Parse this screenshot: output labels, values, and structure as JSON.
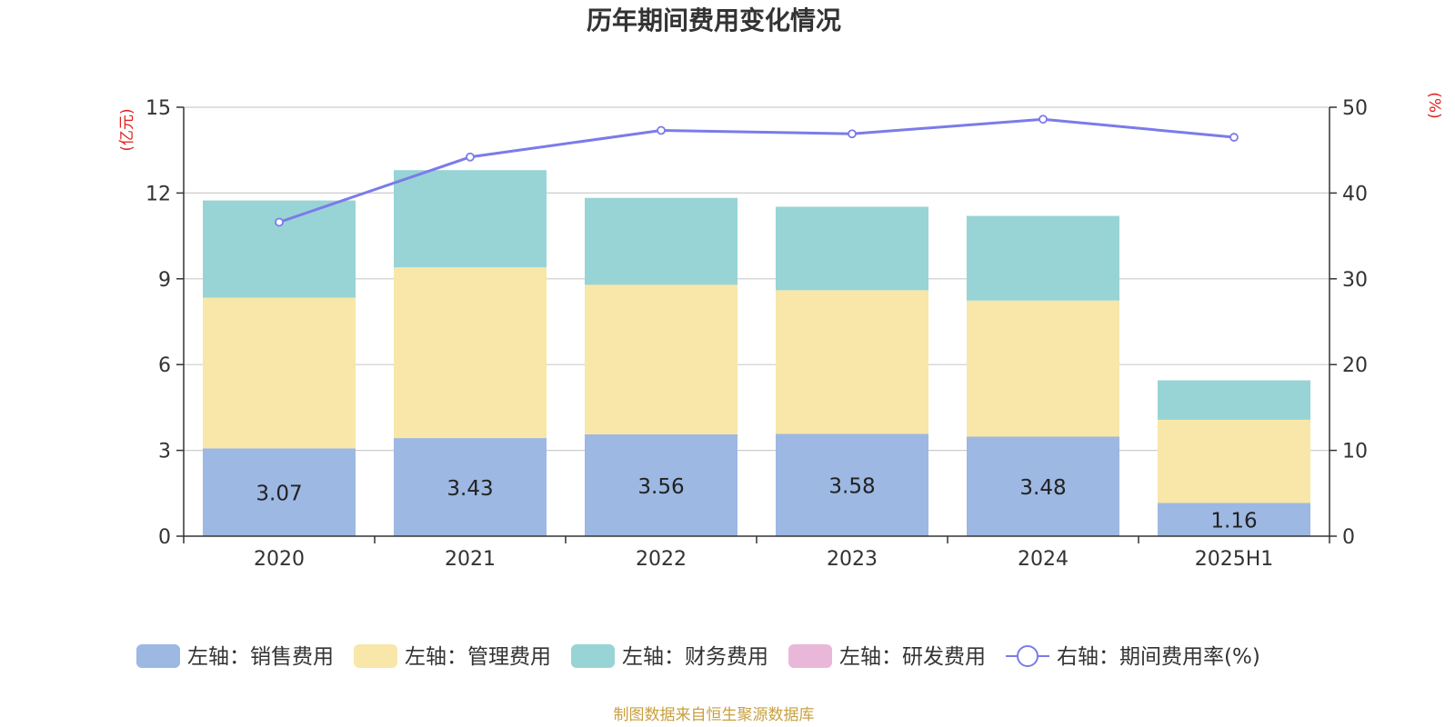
{
  "chart_data": {
    "type": "bar",
    "stacked": true,
    "title": "历年期间费用变化情况",
    "left_axis": {
      "unit": "(亿元)",
      "ylim": [
        0,
        15
      ],
      "ticks": [
        0,
        3,
        6,
        9,
        12,
        15
      ]
    },
    "right_axis": {
      "unit": "(%)",
      "ylim": [
        0,
        50
      ],
      "ticks": [
        0,
        10,
        20,
        30,
        40,
        50
      ]
    },
    "categories": [
      "2020",
      "2021",
      "2022",
      "2023",
      "2024",
      "2025H1"
    ],
    "series": [
      {
        "name": "左轴：销售费用",
        "type": "bar",
        "axis": "left",
        "color": "#9db8e2",
        "values": [
          3.07,
          3.43,
          3.56,
          3.58,
          3.48,
          1.16
        ],
        "show_labels": true
      },
      {
        "name": "左轴：管理费用",
        "type": "bar",
        "axis": "left",
        "color": "#f8e7a9",
        "values": [
          5.27,
          5.97,
          5.23,
          5.02,
          4.76,
          2.91
        ],
        "show_labels": false
      },
      {
        "name": "左轴：财务费用",
        "type": "bar",
        "axis": "left",
        "color": "#98d4d5",
        "values": [
          3.4,
          3.4,
          3.04,
          2.92,
          2.96,
          1.38
        ],
        "show_labels": false
      },
      {
        "name": "左轴：研发费用",
        "type": "bar",
        "axis": "left",
        "color": "#e9b8d9",
        "values": [
          0,
          0,
          0,
          0,
          0,
          0
        ],
        "show_labels": false
      },
      {
        "name": "右轴：期间费用率(%)",
        "type": "line",
        "axis": "right",
        "color": "#7b7bea",
        "values": [
          36.6,
          44.2,
          47.3,
          46.9,
          48.6,
          46.5
        ],
        "show_labels": false
      }
    ],
    "grid": true,
    "legend_position": "bottom",
    "source": "制图数据来自恒生聚源数据库"
  }
}
